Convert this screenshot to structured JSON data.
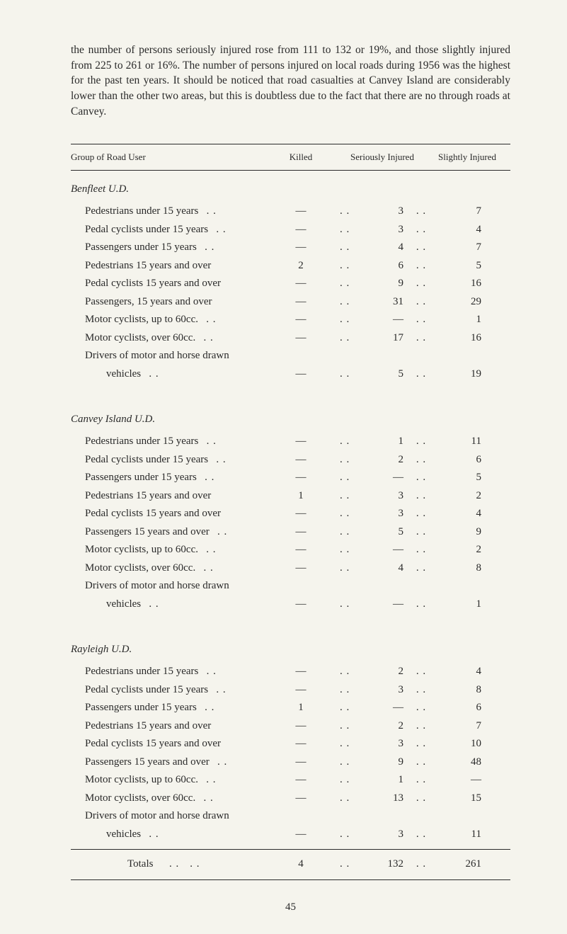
{
  "intro": "the number of persons seriously injured rose from 111 to 132 or 19%, and those slightly injured from 225 to 261 or 16%. The number of persons injured on local roads during 1956 was the highest for the past ten years. It should be noticed that road casualties at Canvey Island are considerably lower than the other two areas, but this is doubtless due to the fact that there are no through roads at Canvey.",
  "headers": {
    "group": "Group of Road User",
    "killed": "Killed",
    "serious": "Seriously Injured",
    "slight": "Slightly Injured"
  },
  "sections": [
    {
      "title": "Benfleet U.D.",
      "rows": [
        {
          "label": "Pedestrians under 15 years",
          "dots": ". .",
          "killed": "—",
          "serious": "3",
          "slight": "7"
        },
        {
          "label": "Pedal cyclists under 15 years",
          "dots": ". .",
          "killed": "—",
          "serious": "3",
          "slight": "4"
        },
        {
          "label": "Passengers under 15 years",
          "dots": ". .",
          "killed": "—",
          "serious": "4",
          "slight": "7"
        },
        {
          "label": "Pedestrians 15 years and over",
          "dots": "",
          "killed": "2",
          "serious": "6",
          "slight": "5"
        },
        {
          "label": "Pedal cyclists 15 years and over",
          "dots": "",
          "killed": "—",
          "serious": "9",
          "slight": "16"
        },
        {
          "label": "Passengers, 15 years and over",
          "dots": "",
          "killed": "—",
          "serious": "31",
          "slight": "29"
        },
        {
          "label": "Motor cyclists, up to 60cc.",
          "dots": ". .",
          "killed": "—",
          "serious": "—",
          "slight": "1"
        },
        {
          "label": "Motor cyclists, over 60cc.",
          "dots": ". .",
          "killed": "—",
          "serious": "17",
          "slight": "16"
        },
        {
          "label": "Drivers of motor and horse drawn",
          "dots": "",
          "killed": "",
          "serious": "",
          "slight": ""
        },
        {
          "label": "vehicles",
          "labelIndent": "indent2",
          "dots": ". .",
          "killed": "—",
          "serious": "5",
          "slight": "19"
        }
      ]
    },
    {
      "title": "Canvey Island U.D.",
      "rows": [
        {
          "label": "Pedestrians under 15 years",
          "dots": ". .",
          "killed": "—",
          "serious": "1",
          "slight": "11"
        },
        {
          "label": "Pedal cyclists under 15 years",
          "dots": ". .",
          "killed": "—",
          "serious": "2",
          "slight": "6"
        },
        {
          "label": "Passengers under 15 years",
          "dots": ". .",
          "killed": "—",
          "serious": "—",
          "slight": "5"
        },
        {
          "label": "Pedestrians 15 years and over",
          "dots": "",
          "killed": "1",
          "serious": "3",
          "slight": "2"
        },
        {
          "label": "Pedal cyclists 15 years and over",
          "dots": "",
          "killed": "—",
          "serious": "3",
          "slight": "4"
        },
        {
          "label": "Passengers 15 years and over",
          "dots": ". .",
          "killed": "—",
          "serious": "5",
          "slight": "9"
        },
        {
          "label": "Motor cyclists, up to 60cc.",
          "dots": ". .",
          "killed": "—",
          "serious": "—",
          "slight": "2"
        },
        {
          "label": "Motor cyclists, over 60cc.",
          "dots": ". .",
          "killed": "—",
          "serious": "4",
          "slight": "8"
        },
        {
          "label": "Drivers of motor and horse drawn",
          "dots": "",
          "killed": "",
          "serious": "",
          "slight": ""
        },
        {
          "label": "vehicles",
          "labelIndent": "indent2",
          "dots": ". .",
          "killed": "—",
          "serious": "—",
          "slight": "1"
        }
      ]
    },
    {
      "title": "Rayleigh U.D.",
      "rows": [
        {
          "label": "Pedestrians under 15 years",
          "dots": ". .",
          "killed": "—",
          "serious": "2",
          "slight": "4"
        },
        {
          "label": "Pedal cyclists under 15 years",
          "dots": ". .",
          "killed": "—",
          "serious": "3",
          "slight": "8"
        },
        {
          "label": "Passengers under 15 years",
          "dots": ". .",
          "killed": "1",
          "serious": "—",
          "slight": "6"
        },
        {
          "label": "Pedestrians 15 years and over",
          "dots": "",
          "killed": "—",
          "serious": "2",
          "slight": "7"
        },
        {
          "label": "Pedal cyclists 15 years and over",
          "dots": "",
          "killed": "—",
          "serious": "3",
          "slight": "10"
        },
        {
          "label": "Passengers 15 years and over",
          "dots": ". .",
          "killed": "—",
          "serious": "9",
          "slight": "48"
        },
        {
          "label": "Motor cyclists, up to 60cc.",
          "dots": ". .",
          "killed": "—",
          "serious": "1",
          "slight": "—"
        },
        {
          "label": "Motor cyclists, over 60cc.",
          "dots": ". .",
          "killed": "—",
          "serious": "13",
          "slight": "15"
        },
        {
          "label": "Drivers of motor and horse drawn",
          "dots": "",
          "killed": "",
          "serious": "",
          "slight": ""
        },
        {
          "label": "vehicles",
          "labelIndent": "indent2",
          "dots": ". .",
          "killed": "—",
          "serious": "3",
          "slight": "11"
        }
      ]
    }
  ],
  "totals": {
    "label": "Totals",
    "killed": "4",
    "serious": "132",
    "slight": "261"
  },
  "page": "45",
  "styling": {
    "background_color": "#f5f4ed",
    "text_color": "#2a2a2a",
    "font_family": "Georgia, serif",
    "body_font_size": 15,
    "header_font_size": 13
  }
}
